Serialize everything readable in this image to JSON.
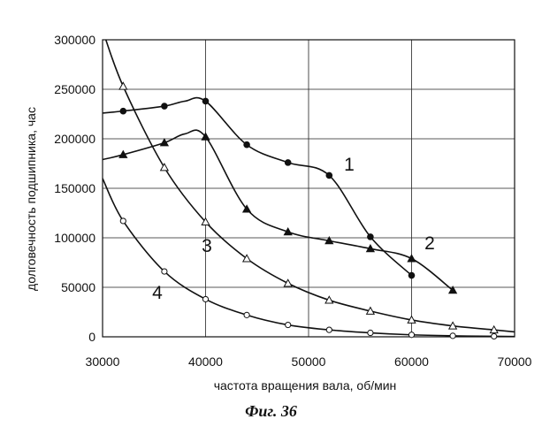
{
  "caption": "Фиг. 36",
  "chart_data": {
    "type": "line",
    "title": "",
    "xlabel": "частота вращения вала, об/мин",
    "ylabel": "долговечность подшипника, час",
    "xlim": [
      30000,
      70000
    ],
    "ylim": [
      0,
      300000
    ],
    "xticks": [
      30000,
      40000,
      50000,
      60000,
      70000
    ],
    "yticks": [
      0,
      50000,
      100000,
      150000,
      200000,
      250000,
      300000
    ],
    "xtick_labels": [
      "30000",
      "40000",
      "50000",
      "60000",
      "70000"
    ],
    "ytick_labels": [
      "0",
      "50000",
      "100000",
      "150000",
      "200000",
      "250000",
      "300000"
    ],
    "grid": true,
    "legend": "none",
    "series": [
      {
        "name": "1",
        "marker": "filled-circle",
        "x": [
          30000,
          32000,
          36000,
          38000,
          40000,
          44000,
          48000,
          52000,
          56000,
          60000
        ],
        "y": [
          226000,
          228000,
          233000,
          238000,
          238000,
          194000,
          176000,
          163000,
          101000,
          62000
        ]
      },
      {
        "name": "2",
        "marker": "filled-triangle",
        "x": [
          30000,
          32000,
          36000,
          38000,
          40000,
          44000,
          48000,
          52000,
          56000,
          60000,
          64000
        ],
        "y": [
          179000,
          184000,
          196000,
          205000,
          202000,
          129000,
          106000,
          97000,
          89000,
          79000,
          47000
        ]
      },
      {
        "name": "3",
        "marker": "open-triangle",
        "x": [
          30000,
          32000,
          36000,
          40000,
          44000,
          48000,
          52000,
          56000,
          60000,
          64000,
          68000,
          70000
        ],
        "y": [
          310000,
          253000,
          171000,
          116000,
          79000,
          54000,
          37000,
          26000,
          17000,
          11000,
          7000,
          5000
        ]
      },
      {
        "name": "4",
        "marker": "open-circle",
        "x": [
          30000,
          32000,
          36000,
          40000,
          44000,
          48000,
          52000,
          56000,
          60000,
          64000,
          68000,
          70000
        ],
        "y": [
          160000,
          117000,
          66000,
          38000,
          22000,
          12000,
          7000,
          4000,
          2000,
          1000,
          500,
          300
        ]
      }
    ]
  }
}
